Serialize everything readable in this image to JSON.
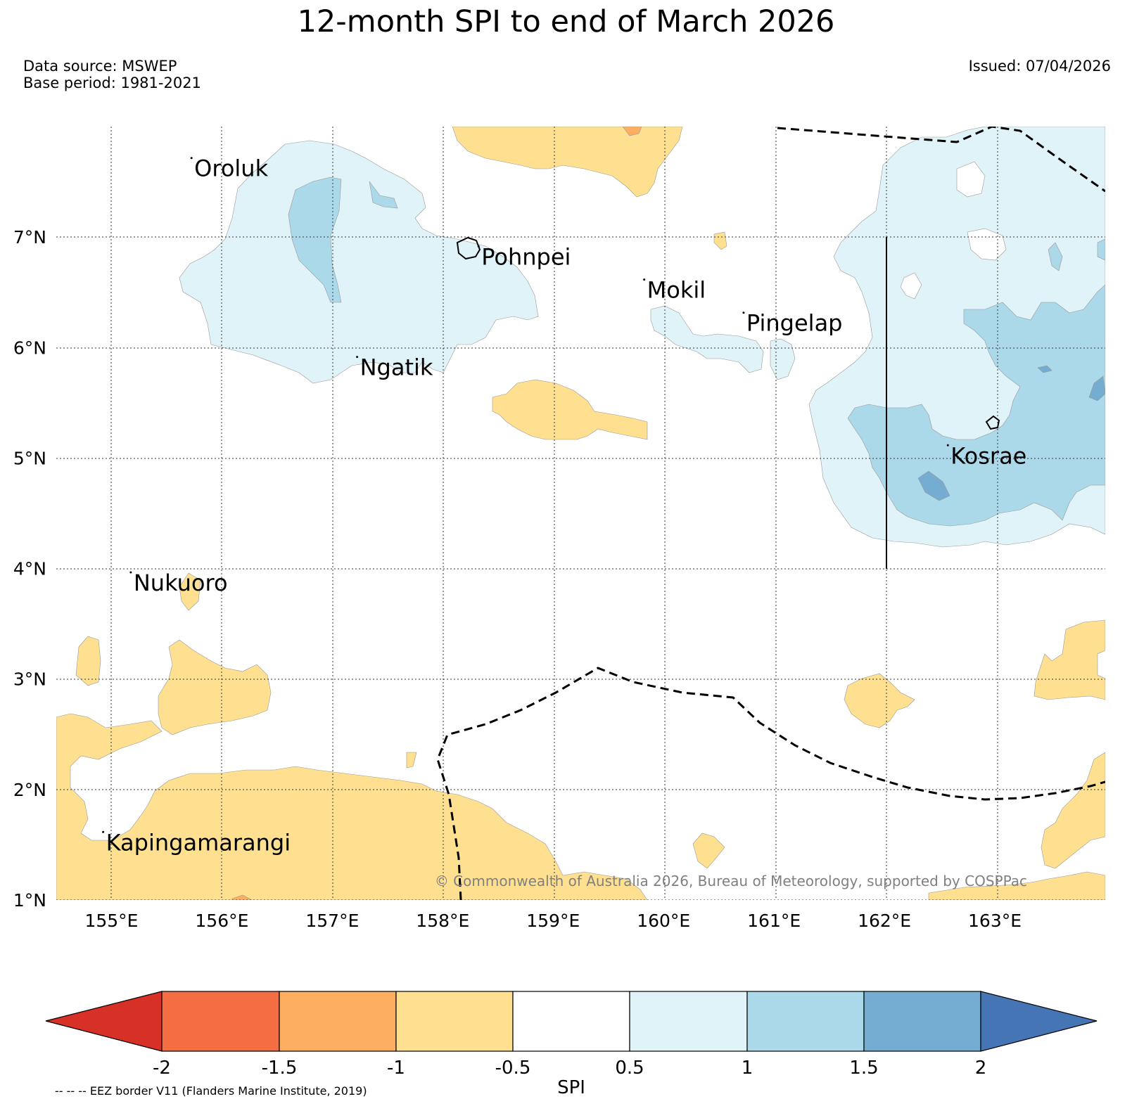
{
  "title": "12-month SPI to end of March 2026",
  "data_source": "Data source: MSWEP",
  "base_period": "Base period: 1981-2021",
  "issued": "Issued: 07/04/2026",
  "map": {
    "lon_range": [
      154.5,
      164.0
    ],
    "lat_range": [
      1.0,
      8.0
    ],
    "lon_ticks": [
      "155°E",
      "156°E",
      "157°E",
      "158°E",
      "159°E",
      "160°E",
      "161°E",
      "162°E",
      "163°E"
    ],
    "lat_ticks": [
      "1°N",
      "2°N",
      "3°N",
      "4°N",
      "5°N",
      "6°N",
      "7°N"
    ],
    "places": [
      {
        "name": "Oroluk",
        "lon": 155.75,
        "lat": 7.55
      },
      {
        "name": "Pohnpei",
        "lon": 158.35,
        "lat": 6.75
      },
      {
        "name": "Mokil",
        "lon": 159.85,
        "lat": 6.45
      },
      {
        "name": "Pingelap",
        "lon": 160.75,
        "lat": 6.15
      },
      {
        "name": "Ngatik",
        "lon": 157.25,
        "lat": 5.75
      },
      {
        "name": "Kosrae",
        "lon": 162.6,
        "lat": 4.95
      },
      {
        "name": "Nukuoro",
        "lon": 155.2,
        "lat": 3.8
      },
      {
        "name": "Kapingamarangi",
        "lon": 154.95,
        "lat": 1.45
      }
    ],
    "copyright": "© Commonwealth of Australia 2026, Bureau of Meteorology, supported by COSPPac"
  },
  "colorbar": {
    "label": "SPI",
    "ticks": [
      "-2",
      "-1.5",
      "-1",
      "-0.5",
      "0.5",
      "1",
      "1.5",
      "2"
    ],
    "colors": {
      "below_-2": "#d73027",
      "-2_to_-1.5": "#f46d43",
      "-1.5_to_-1": "#fdae61",
      "-1_to_-0.5": "#fee090",
      "-0.5_to_0.5": "#ffffff",
      "0.5_to_1": "#e0f3f8",
      "1_to_1.5": "#abd9e9",
      "1.5_to_2": "#74add1",
      "above_2": "#4575b4"
    }
  },
  "legend_note": "-- -- -- EEZ border V11 (Flanders Marine Institute, 2019)"
}
